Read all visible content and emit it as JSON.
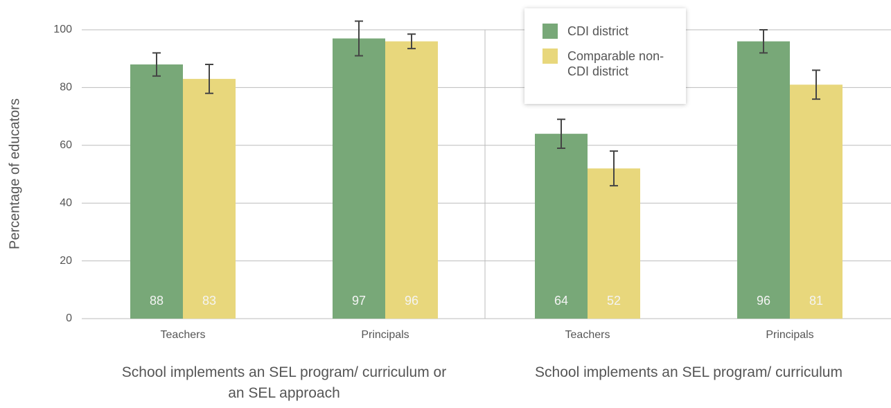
{
  "chart_data": {
    "type": "bar",
    "y_label": "Percentage of educators",
    "categories": [
      "Teachers",
      "Principals",
      "Teachers",
      "Principals"
    ],
    "groups": [
      "School implements an SEL program/ curriculum or an SEL approach",
      "School implements an SEL program/ curriculum"
    ],
    "series": [
      {
        "name": "CDI district",
        "color": "#78a878",
        "values": [
          88,
          97,
          64,
          96
        ],
        "errors": [
          4,
          6,
          5,
          4
        ]
      },
      {
        "name": "Comparable non-CDI district",
        "color": "#e8d77c",
        "values": [
          83,
          96,
          52,
          81
        ],
        "errors": [
          5,
          2.5,
          6,
          5
        ]
      }
    ],
    "ylim": [
      0,
      100
    ],
    "yticks": [
      0,
      20,
      40,
      60,
      80,
      100
    ],
    "grid": true,
    "legend": "top"
  }
}
